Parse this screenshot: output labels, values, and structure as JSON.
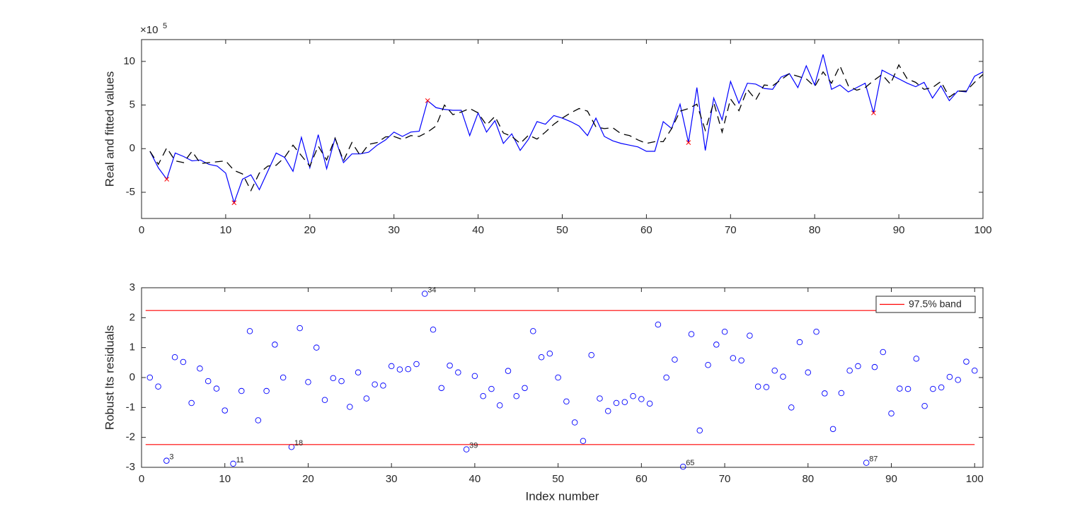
{
  "chart_data": [
    {
      "type": "line",
      "y_label": "Real and fitted values",
      "y_multiplier": {
        "base": "×10",
        "power": "5"
      },
      "x": [
        1,
        2,
        3,
        4,
        5,
        6,
        7,
        8,
        9,
        10,
        11,
        12,
        13,
        14,
        15,
        16,
        17,
        18,
        19,
        20,
        21,
        22,
        23,
        24,
        25,
        26,
        27,
        28,
        29,
        30,
        31,
        32,
        33,
        34,
        35,
        36,
        37,
        38,
        39,
        40,
        41,
        42,
        43,
        44,
        45,
        46,
        47,
        48,
        49,
        50,
        51,
        52,
        53,
        54,
        55,
        56,
        57,
        58,
        59,
        60,
        61,
        62,
        63,
        64,
        65,
        66,
        67,
        68,
        69,
        70,
        71,
        72,
        73,
        74,
        75,
        76,
        77,
        78,
        79,
        80,
        81,
        82,
        83,
        84,
        85,
        86,
        87,
        88,
        89,
        90,
        91,
        92,
        93,
        94,
        95,
        96,
        97,
        98,
        99,
        100
      ],
      "series": [
        {
          "color": "#0000ff",
          "line_style": "solid",
          "values": [
            -0.3,
            -2.2,
            -3.5,
            -0.5,
            -0.9,
            -1.4,
            -1.3,
            -1.8,
            -2.0,
            -2.8,
            -6.2,
            -3.5,
            -3.0,
            -4.7,
            -2.6,
            -0.5,
            -1.0,
            -2.6,
            1.3,
            -2.2,
            1.6,
            -2.3,
            1.2,
            -1.6,
            -0.6,
            -0.6,
            -0.4,
            0.4,
            1.0,
            1.9,
            1.4,
            1.9,
            2.0,
            5.5,
            4.7,
            4.5,
            4.4,
            4.4,
            1.5,
            4.1,
            1.9,
            3.2,
            0.6,
            1.7,
            -0.2,
            1.1,
            3.1,
            2.8,
            3.8,
            3.5,
            3.1,
            2.6,
            1.5,
            3.5,
            1.4,
            0.9,
            0.6,
            0.4,
            0.2,
            -0.3,
            -0.3,
            3.1,
            2.3,
            5.1,
            0.7,
            7.0,
            -0.2,
            5.8,
            3.3,
            7.7,
            5.2,
            7.5,
            7.4,
            6.9,
            6.8,
            8.2,
            8.6,
            7.0,
            9.5,
            7.3,
            10.8,
            6.8,
            7.3,
            6.5,
            7.0,
            7.5,
            4.1,
            9.0,
            8.5,
            8.0,
            7.5,
            7.1,
            7.6,
            5.8,
            7.2,
            5.5,
            6.6,
            6.5,
            8.3,
            8.8
          ]
        },
        {
          "color": "#000000",
          "line_style": "dashed",
          "values": [
            -0.3,
            -1.8,
            0.1,
            -1.4,
            -1.6,
            -0.3,
            -1.7,
            -1.6,
            -1.5,
            -1.4,
            -2.5,
            -2.9,
            -4.8,
            -2.8,
            -2.0,
            -1.9,
            -1.0,
            0.4,
            -0.8,
            -2.0,
            0.3,
            -1.3,
            1.2,
            -1.4,
            0.7,
            -0.8,
            0.5,
            0.7,
            1.35,
            1.4,
            1.05,
            1.5,
            1.4,
            1.9,
            2.6,
            5.0,
            3.9,
            4.2,
            4.6,
            4.1,
            2.7,
            3.7,
            1.8,
            1.4,
            0.6,
            1.55,
            1.1,
            1.9,
            2.8,
            3.5,
            4.1,
            4.6,
            4.3,
            2.5,
            2.3,
            2.4,
            1.7,
            1.5,
            1.0,
            0.6,
            0.8,
            0.8,
            2.3,
            4.3,
            4.6,
            5.1,
            2.1,
            5.3,
            1.9,
            5.7,
            4.35,
            6.8,
            5.6,
            7.3,
            7.2,
            7.9,
            8.6,
            8.3,
            8.0,
            7.1,
            8.8,
            7.5,
            9.5,
            7.2,
            6.7,
            7.0,
            7.8,
            8.5,
            7.4,
            9.6,
            8.0,
            7.6,
            6.8,
            7.0,
            7.7,
            5.9,
            6.6,
            6.6,
            7.6,
            8.5
          ]
        }
      ],
      "outliers": {
        "color": "#ff0000",
        "x": [
          3,
          11,
          34,
          65,
          87
        ]
      },
      "xlim": [
        0,
        100
      ],
      "ylim": [
        -8,
        12.5
      ],
      "xticks": [
        0,
        10,
        20,
        30,
        40,
        50,
        60,
        70,
        80,
        90,
        100
      ],
      "yticks": [
        -5,
        0,
        5,
        10
      ]
    },
    {
      "type": "scatter",
      "x_label": "Index number",
      "y_label": "Robust lts residuals",
      "x": [
        1,
        2,
        3,
        4,
        5,
        6,
        7,
        8,
        9,
        10,
        11,
        12,
        13,
        14,
        15,
        16,
        17,
        18,
        19,
        20,
        21,
        22,
        23,
        24,
        25,
        26,
        27,
        28,
        29,
        30,
        31,
        32,
        33,
        34,
        35,
        36,
        37,
        38,
        39,
        40,
        41,
        42,
        43,
        44,
        45,
        46,
        47,
        48,
        49,
        50,
        51,
        52,
        53,
        54,
        55,
        56,
        57,
        58,
        59,
        60,
        61,
        62,
        63,
        64,
        65,
        66,
        67,
        68,
        69,
        70,
        71,
        72,
        73,
        74,
        75,
        76,
        77,
        78,
        79,
        80,
        81,
        82,
        83,
        84,
        85,
        86,
        87,
        88,
        89,
        90,
        91,
        92,
        93,
        94,
        95,
        96,
        97,
        98,
        99,
        100
      ],
      "series": [
        {
          "color": "#0000ff",
          "marker": "circle",
          "values": [
            0.0,
            -0.3,
            -2.78,
            0.68,
            0.52,
            -0.85,
            0.3,
            -0.12,
            -0.37,
            -1.1,
            -2.88,
            -0.45,
            1.55,
            -1.43,
            -0.45,
            1.1,
            0.0,
            -2.32,
            1.65,
            -0.15,
            1.0,
            -0.75,
            -0.02,
            -0.12,
            -0.98,
            0.17,
            -0.7,
            -0.23,
            -0.27,
            0.38,
            0.27,
            0.28,
            0.45,
            2.8,
            1.6,
            -0.35,
            0.4,
            0.17,
            -2.4,
            0.05,
            -0.62,
            -0.38,
            -0.93,
            0.22,
            -0.62,
            -0.35,
            1.55,
            0.68,
            0.8,
            0.0,
            -0.8,
            -1.5,
            -2.12,
            0.75,
            -0.7,
            -1.12,
            -0.85,
            -0.82,
            -0.62,
            -0.72,
            -0.87,
            1.77,
            0.0,
            0.6,
            -2.98,
            1.45,
            -1.77,
            0.42,
            1.1,
            1.53,
            0.65,
            0.57,
            1.4,
            -0.3,
            -0.32,
            0.23,
            0.03,
            -1.0,
            1.18,
            0.17,
            1.53,
            -0.53,
            -1.72,
            -0.52,
            0.23,
            0.38,
            -2.85,
            0.35,
            0.85,
            -1.2,
            -0.37,
            -0.38,
            0.63,
            -0.95,
            -0.38,
            -0.33,
            0.02,
            -0.08,
            0.53,
            0.23
          ]
        }
      ],
      "bands": {
        "name": "97.5% band",
        "color": "#ff0000",
        "values": [
          -2.24,
          2.24
        ]
      },
      "labeled_points": [
        3,
        11,
        18,
        34,
        39,
        65,
        87
      ],
      "legend": "northeast",
      "xlim": [
        0,
        101
      ],
      "ylim": [
        -3,
        3
      ],
      "xticks": [
        0,
        10,
        20,
        30,
        40,
        50,
        60,
        70,
        80,
        90,
        100
      ],
      "yticks": [
        -3,
        -2,
        -1,
        0,
        1,
        2,
        3
      ]
    }
  ]
}
